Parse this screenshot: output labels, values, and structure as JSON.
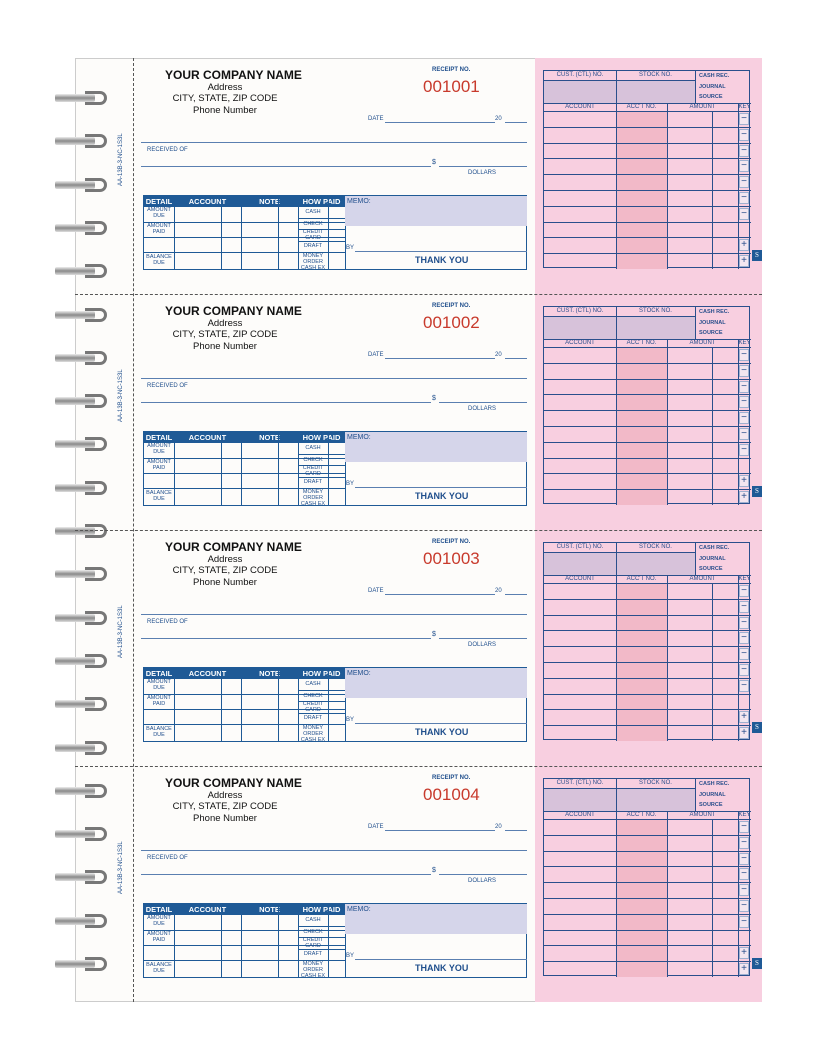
{
  "company": {
    "name": "YOUR COMPANY NAME",
    "address": "Address",
    "city": "CITY, STATE, ZIP CODE",
    "phone": "Phone Number"
  },
  "stub_code": "AA-13B-3-NC-1S3L",
  "labels": {
    "receipt_no": "RECEIPT NO.",
    "date": "DATE",
    "year": "20",
    "received_of": "RECEIVED OF",
    "dollar_sign": "$",
    "dollars": "DOLLARS",
    "memo": "MEMO:",
    "by": "BY",
    "thank_you": "THANK YOU"
  },
  "table": {
    "headers": [
      "DETAIL",
      "ACCOUNT",
      "NOTE",
      "HOW PAID"
    ],
    "detail_rows": [
      "AMOUNT DUE",
      "AMOUNT PAID",
      "",
      "BALANCE DUE"
    ],
    "how_paid": [
      "CASH",
      "CHECK",
      "CREDIT CARD",
      "DRAFT",
      "MONEY ORDER CASH EX"
    ]
  },
  "journal": {
    "cust": "CUST. (CTL) NO.",
    "stock": "STOCK NO.",
    "cash_rec": "CASH REC.",
    "journal": "JOURNAL",
    "source": "SOURCE",
    "account": "ACCOUNT",
    "acct_no": "ACC'T NO.",
    "amount": "AMOUNT",
    "key": "KEY",
    "keys": [
      "−",
      "−",
      "−",
      "−",
      "−",
      "−",
      "−",
      "",
      "+",
      "+"
    ],
    "badge": "S"
  },
  "receipts": [
    {
      "number": "001001"
    },
    {
      "number": "001002"
    },
    {
      "number": "001003"
    },
    {
      "number": "001004"
    }
  ],
  "colors": {
    "blue": "#1f5a96",
    "red": "#c83a2c",
    "pink": "#f8cfe0",
    "lavender": "#d5d5ea"
  }
}
